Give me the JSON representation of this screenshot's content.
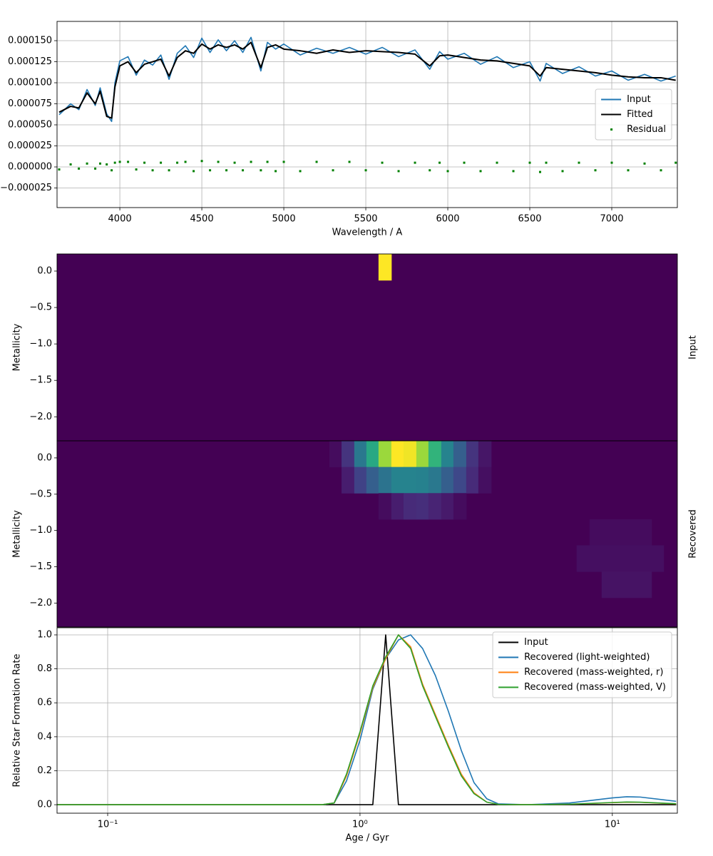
{
  "chart_data": [
    {
      "type": "line",
      "xlabel": "Wavelength / A",
      "xlim": [
        3617,
        7400
      ],
      "ylim": [
        -4.83e-05,
        0.0001729
      ],
      "xticks": [
        4000,
        4500,
        5000,
        5500,
        6000,
        6500,
        7000
      ],
      "yticks": [
        {
          "value": -2.5e-05,
          "label": "−0.000025"
        },
        {
          "value": 0,
          "label": "0.000000"
        },
        {
          "value": 2.5e-05,
          "label": "0.000025"
        },
        {
          "value": 5e-05,
          "label": "0.000050"
        },
        {
          "value": 7.5e-05,
          "label": "0.000075"
        },
        {
          "value": 0.0001,
          "label": "0.000100"
        },
        {
          "value": 0.000125,
          "label": "0.000125"
        },
        {
          "value": 0.00015,
          "label": "0.000150"
        }
      ],
      "grid": true,
      "legend": "center right",
      "x": [
        3630,
        3700,
        3750,
        3800,
        3850,
        3880,
        3920,
        3950,
        3970,
        4000,
        4050,
        4100,
        4150,
        4200,
        4250,
        4300,
        4350,
        4400,
        4450,
        4500,
        4550,
        4600,
        4650,
        4700,
        4750,
        4800,
        4860,
        4900,
        4950,
        5000,
        5100,
        5200,
        5300,
        5400,
        5500,
        5600,
        5700,
        5800,
        5890,
        5950,
        6000,
        6100,
        6200,
        6300,
        6400,
        6500,
        6563,
        6600,
        6700,
        6800,
        6900,
        7000,
        7100,
        7200,
        7300,
        7390
      ],
      "series": [
        {
          "name": "Input",
          "color": "#1f77b4",
          "type": "line",
          "values": [
            6.2e-05,
            7.5e-05,
            6.8e-05,
            9.2e-05,
            7.3e-05,
            9.4e-05,
            6.3e-05,
            5.4e-05,
            0.0001,
            0.000126,
            0.000131,
            0.000109,
            0.000127,
            0.000121,
            0.000133,
            0.000104,
            0.000135,
            0.000144,
            0.00013,
            0.000153,
            0.000136,
            0.000151,
            0.000138,
            0.00015,
            0.000136,
            0.000154,
            0.000114,
            0.000148,
            0.00014,
            0.000146,
            0.000133,
            0.000141,
            0.000135,
            0.000142,
            0.000134,
            0.000142,
            0.000131,
            0.000139,
            0.000116,
            0.000137,
            0.000128,
            0.000135,
            0.000122,
            0.000131,
            0.000118,
            0.000125,
            0.000102,
            0.000123,
            0.000111,
            0.000119,
            0.000108,
            0.000114,
            0.000103,
            0.00011,
            0.000102,
            0.000108
          ]
        },
        {
          "name": "Fitted",
          "color": "#000000",
          "type": "line",
          "values": [
            6.5e-05,
            7.2e-05,
            7e-05,
            8.8e-05,
            7.5e-05,
            9e-05,
            6e-05,
            5.8e-05,
            9.5e-05,
            0.00012,
            0.000125,
            0.000112,
            0.000122,
            0.000125,
            0.000128,
            0.000108,
            0.00013,
            0.000138,
            0.000135,
            0.000146,
            0.00014,
            0.000145,
            0.000142,
            0.000145,
            0.00014,
            0.000148,
            0.000118,
            0.000142,
            0.000145,
            0.00014,
            0.000138,
            0.000135,
            0.000139,
            0.000136,
            0.000138,
            0.000137,
            0.000136,
            0.000134,
            0.00012,
            0.000132,
            0.000133,
            0.00013,
            0.000127,
            0.000126,
            0.000123,
            0.00012,
            0.000108,
            0.000118,
            0.000116,
            0.000114,
            0.000112,
            0.000109,
            0.000107,
            0.000106,
            0.000106,
            0.000103
          ]
        },
        {
          "name": "Residual",
          "color": "#008000",
          "type": "scatter",
          "values": [
            -3e-06,
            3e-06,
            -2e-06,
            4e-06,
            -2e-06,
            4e-06,
            3e-06,
            -4e-06,
            5e-06,
            6e-06,
            6e-06,
            -3e-06,
            5e-06,
            -4e-06,
            5e-06,
            -4e-06,
            5e-06,
            6e-06,
            -5e-06,
            7e-06,
            -4e-06,
            6e-06,
            -4e-06,
            5e-06,
            -4e-06,
            6e-06,
            -4e-06,
            6e-06,
            -5e-06,
            6e-06,
            -5e-06,
            6e-06,
            -4e-06,
            6e-06,
            -4e-06,
            5e-06,
            -5e-06,
            5e-06,
            -4e-06,
            5e-06,
            -5e-06,
            5e-06,
            -5e-06,
            5e-06,
            -5e-06,
            5e-06,
            -6e-06,
            5e-06,
            -5e-06,
            5e-06,
            -4e-06,
            5e-06,
            -4e-06,
            4e-06,
            -4e-06,
            5e-06
          ]
        }
      ]
    },
    {
      "type": "heatmap",
      "ylabel": "Metallicity",
      "y2label": "Input",
      "log_x": true,
      "xlim": [
        0.063,
        18.1
      ],
      "ylim": [
        -2.33,
        0.235
      ],
      "colormap": "viridis",
      "zlim": [
        0,
        1
      ],
      "yticks": [
        {
          "value": -2,
          "label": "−2.0"
        },
        {
          "value": -1.5,
          "label": "−1.5"
        },
        {
          "value": -1,
          "label": "−1.0"
        },
        {
          "value": -0.5,
          "label": "−0.5"
        },
        {
          "value": 0,
          "label": "0.0"
        }
      ],
      "cells": [
        {
          "age": [
            1.184,
            1.331
          ],
          "metallicity": [
            -0.125,
            0.235
          ],
          "value": 1
        }
      ]
    },
    {
      "type": "heatmap",
      "ylabel": "Metallicity",
      "y2label": "Recovered",
      "log_x": true,
      "xlim": [
        0.063,
        18.1
      ],
      "ylim": [
        -2.33,
        0.235
      ],
      "colormap": "viridis",
      "zlim": [
        0,
        1
      ],
      "yticks": [
        {
          "value": -2,
          "label": "−2.0"
        },
        {
          "value": -1.5,
          "label": "−1.5"
        },
        {
          "value": -1,
          "label": "−1.0"
        },
        {
          "value": -0.5,
          "label": "−0.5"
        },
        {
          "value": 0,
          "label": "0.0"
        }
      ],
      "cells": [
        {
          "age": [
            0.756,
            0.845
          ],
          "metallicity": [
            -0.125,
            0.235
          ],
          "value": 0.03
        },
        {
          "age": [
            0.845,
            0.949
          ],
          "metallicity": [
            -0.125,
            0.235
          ],
          "value": 0.15
        },
        {
          "age": [
            0.949,
            1.06
          ],
          "metallicity": [
            -0.125,
            0.235
          ],
          "value": 0.4
        },
        {
          "age": [
            1.06,
            1.184
          ],
          "metallicity": [
            -0.125,
            0.235
          ],
          "value": 0.6
        },
        {
          "age": [
            1.184,
            1.331
          ],
          "metallicity": [
            -0.125,
            0.235
          ],
          "value": 0.85
        },
        {
          "age": [
            1.331,
            1.487
          ],
          "metallicity": [
            -0.125,
            0.235
          ],
          "value": 1
        },
        {
          "age": [
            1.487,
            1.672
          ],
          "metallicity": [
            -0.125,
            0.235
          ],
          "value": 0.98
        },
        {
          "age": [
            1.672,
            1.867
          ],
          "metallicity": [
            -0.125,
            0.235
          ],
          "value": 0.85
        },
        {
          "age": [
            1.867,
            2.099
          ],
          "metallicity": [
            -0.125,
            0.235
          ],
          "value": 0.65
        },
        {
          "age": [
            2.099,
            2.345
          ],
          "metallicity": [
            -0.125,
            0.235
          ],
          "value": 0.45
        },
        {
          "age": [
            2.345,
            2.636
          ],
          "metallicity": [
            -0.125,
            0.235
          ],
          "value": 0.3
        },
        {
          "age": [
            2.636,
            2.944
          ],
          "metallicity": [
            -0.125,
            0.235
          ],
          "value": 0.15
        },
        {
          "age": [
            2.944,
            3.31
          ],
          "metallicity": [
            -0.125,
            0.235
          ],
          "value": 0.06
        },
        {
          "age": [
            0.845,
            0.949
          ],
          "metallicity": [
            -0.485,
            -0.125
          ],
          "value": 0.08
        },
        {
          "age": [
            0.949,
            1.06
          ],
          "metallicity": [
            -0.485,
            -0.125
          ],
          "value": 0.2
        },
        {
          "age": [
            1.06,
            1.184
          ],
          "metallicity": [
            -0.485,
            -0.125
          ],
          "value": 0.3
        },
        {
          "age": [
            1.184,
            1.331
          ],
          "metallicity": [
            -0.485,
            -0.125
          ],
          "value": 0.38
        },
        {
          "age": [
            1.331,
            1.487
          ],
          "metallicity": [
            -0.485,
            -0.125
          ],
          "value": 0.45
        },
        {
          "age": [
            1.487,
            1.672
          ],
          "metallicity": [
            -0.485,
            -0.125
          ],
          "value": 0.45
        },
        {
          "age": [
            1.672,
            1.867
          ],
          "metallicity": [
            -0.485,
            -0.125
          ],
          "value": 0.44
        },
        {
          "age": [
            1.867,
            2.099
          ],
          "metallicity": [
            -0.485,
            -0.125
          ],
          "value": 0.4
        },
        {
          "age": [
            2.099,
            2.345
          ],
          "metallicity": [
            -0.485,
            -0.125
          ],
          "value": 0.3
        },
        {
          "age": [
            2.345,
            2.636
          ],
          "metallicity": [
            -0.485,
            -0.125
          ],
          "value": 0.22
        },
        {
          "age": [
            2.636,
            2.944
          ],
          "metallicity": [
            -0.485,
            -0.125
          ],
          "value": 0.12
        },
        {
          "age": [
            2.944,
            3.31
          ],
          "metallicity": [
            -0.485,
            -0.125
          ],
          "value": 0.04
        },
        {
          "age": [
            1.184,
            1.331
          ],
          "metallicity": [
            -0.845,
            -0.485
          ],
          "value": 0.03
        },
        {
          "age": [
            1.331,
            1.487
          ],
          "metallicity": [
            -0.845,
            -0.485
          ],
          "value": 0.08
        },
        {
          "age": [
            1.487,
            1.672
          ],
          "metallicity": [
            -0.845,
            -0.485
          ],
          "value": 0.12
        },
        {
          "age": [
            1.672,
            1.867
          ],
          "metallicity": [
            -0.845,
            -0.485
          ],
          "value": 0.13
        },
        {
          "age": [
            1.867,
            2.099
          ],
          "metallicity": [
            -0.845,
            -0.485
          ],
          "value": 0.1
        },
        {
          "age": [
            2.099,
            2.345
          ],
          "metallicity": [
            -0.845,
            -0.485
          ],
          "value": 0.07
        },
        {
          "age": [
            2.345,
            2.636
          ],
          "metallicity": [
            -0.845,
            -0.485
          ],
          "value": 0.03
        },
        {
          "age": [
            8.12,
            14.3
          ],
          "metallicity": [
            -1.205,
            -0.845
          ],
          "value": 0.03
        },
        {
          "age": [
            7.22,
            15.97
          ],
          "metallicity": [
            -1.565,
            -1.205
          ],
          "value": 0.04
        },
        {
          "age": [
            9.07,
            14.3
          ],
          "metallicity": [
            -1.925,
            -1.565
          ],
          "value": 0.05
        }
      ]
    },
    {
      "type": "line",
      "xlabel": "Age / Gyr",
      "ylabel": "Relative Star Formation Rate",
      "log_x": true,
      "xlim": [
        0.063,
        18.1
      ],
      "ylim": [
        -0.05,
        1.042
      ],
      "xticks": [
        {
          "value": 0.1,
          "label": "10⁻¹"
        },
        {
          "value": 1,
          "label": "10⁰"
        },
        {
          "value": 10,
          "label": "10¹"
        }
      ],
      "yticks": [
        {
          "value": 0,
          "label": "0.0"
        },
        {
          "value": 0.2,
          "label": "0.2"
        },
        {
          "value": 0.4,
          "label": "0.4"
        },
        {
          "value": 0.6,
          "label": "0.6"
        },
        {
          "value": 0.8,
          "label": "0.8"
        },
        {
          "value": 1,
          "label": "1.0"
        }
      ],
      "grid": true,
      "legend": "upper right",
      "x": [
        0.063,
        0.708,
        0.79,
        0.884,
        1,
        1.124,
        1.264,
        1.42,
        1.587,
        1.77,
        1.99,
        2.24,
        2.52,
        2.83,
        3.18,
        3.53,
        4.58,
        6.76,
        10,
        11.4,
        12.9,
        17.9
      ],
      "series": [
        {
          "name": "Input",
          "color": "#000000",
          "type": "line",
          "values": [
            0,
            0,
            0,
            0,
            0,
            0,
            1,
            0,
            0,
            0,
            0,
            0,
            0,
            0,
            0,
            0,
            0,
            0,
            0,
            0,
            0,
            0
          ]
        },
        {
          "name": "Recovered (light-weighted)",
          "color": "#1f77b4",
          "type": "line",
          "values": [
            0,
            0,
            0.01,
            0.14,
            0.38,
            0.68,
            0.86,
            0.97,
            1,
            0.92,
            0.76,
            0.55,
            0.32,
            0.13,
            0.035,
            0.005,
            0,
            0.01,
            0.04,
            0.047,
            0.045,
            0.02
          ]
        },
        {
          "name": "Recovered (mass-weighted, r)",
          "color": "#ff7f0e",
          "type": "line",
          "values": [
            0,
            0,
            0.01,
            0.17,
            0.42,
            0.69,
            0.86,
            1,
            0.93,
            0.71,
            0.53,
            0.35,
            0.18,
            0.07,
            0.015,
            0.002,
            0,
            0.003,
            0.012,
            0.015,
            0.014,
            0.005
          ]
        },
        {
          "name": "Recovered (mass-weighted, V)",
          "color": "#2ca02c",
          "type": "line",
          "values": [
            0,
            0,
            0.01,
            0.18,
            0.43,
            0.7,
            0.87,
            1,
            0.92,
            0.7,
            0.52,
            0.34,
            0.17,
            0.065,
            0.015,
            0.002,
            0,
            0.003,
            0.013,
            0.016,
            0.015,
            0.006
          ]
        }
      ]
    }
  ]
}
